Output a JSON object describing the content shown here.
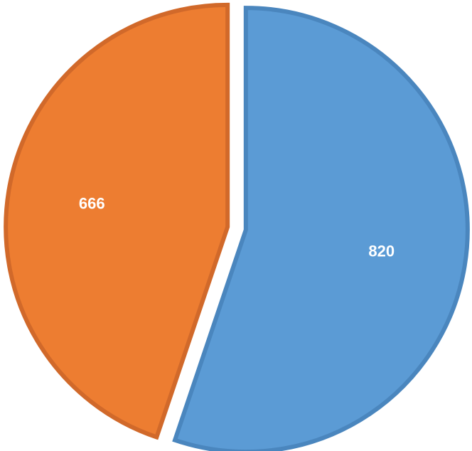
{
  "chart_data": {
    "type": "pie",
    "title": "",
    "start": "top",
    "direction": "clockwise",
    "exploded": true,
    "legend": "none",
    "slices": [
      {
        "value": 820,
        "label": "820",
        "color": "#5b9bd5",
        "border": "#4a86be"
      },
      {
        "value": 666,
        "label": "666",
        "color": "#ed7d31",
        "border": "#d1692a"
      }
    ]
  }
}
